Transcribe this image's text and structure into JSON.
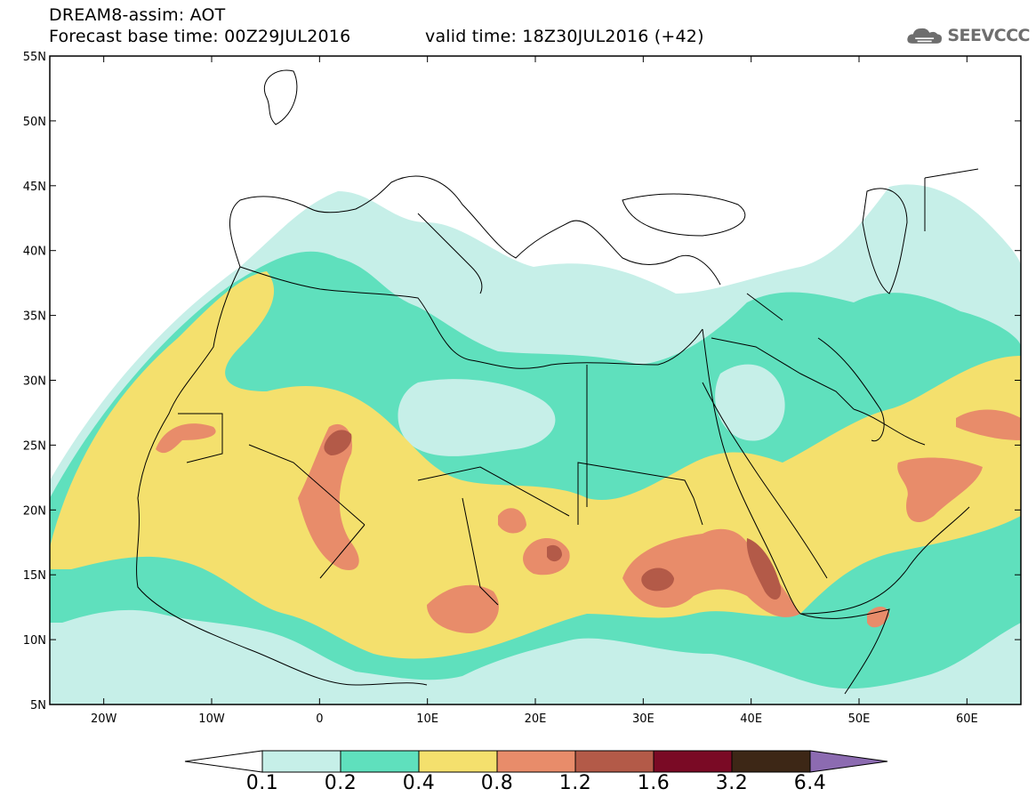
{
  "header": {
    "model_line": "DREAM8-assim: AOT",
    "base_time": "Forecast base time: 00Z29JUL2016",
    "valid_time": "valid time: 18Z30JUL2016 (+42)"
  },
  "logo": {
    "text": "SEEVCCC",
    "icon": "cloud-icon"
  },
  "map": {
    "lon_range": [
      -25,
      65
    ],
    "lat_range": [
      5,
      55
    ],
    "lat_ticks": [
      "5N",
      "10N",
      "15N",
      "20N",
      "25N",
      "30N",
      "35N",
      "40N",
      "45N",
      "50N",
      "55N"
    ],
    "lon_ticks": [
      "20W",
      "10W",
      "0",
      "10E",
      "20E",
      "30E",
      "40E",
      "50E",
      "60E"
    ]
  },
  "colorbar": {
    "labels": [
      "0.1",
      "0.2",
      "0.4",
      "0.8",
      "1.2",
      "1.6",
      "3.2",
      "6.4"
    ],
    "colors": [
      "#c6efe8",
      "#5fe0bd",
      "#f4e06d",
      "#e88c6a",
      "#b35a48",
      "#7a0a25",
      "#3d2716",
      "#8c6bb1"
    ]
  }
}
